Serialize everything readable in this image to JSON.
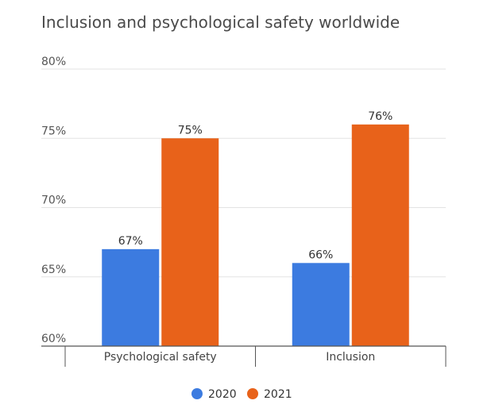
{
  "chart_data": {
    "type": "bar",
    "title": "Inclusion and psychological safety worldwide",
    "xlabel": "",
    "ylabel": "",
    "categories": [
      "Psychological safety",
      "Inclusion"
    ],
    "series": [
      {
        "name": "2020",
        "values": [
          67,
          66
        ],
        "color": "#3c7be0"
      },
      {
        "name": "2021",
        "values": [
          75,
          76
        ],
        "color": "#e8621a"
      }
    ],
    "ylim": [
      60,
      80
    ],
    "yticks": [
      60,
      65,
      70,
      75,
      80
    ],
    "ytick_labels": [
      "60%",
      "65%",
      "70%",
      "75%",
      "80%"
    ],
    "data_labels": [
      [
        "67%",
        "66%"
      ],
      [
        "75%",
        "76%"
      ]
    ],
    "grid": true,
    "legend": "bottom-center"
  }
}
